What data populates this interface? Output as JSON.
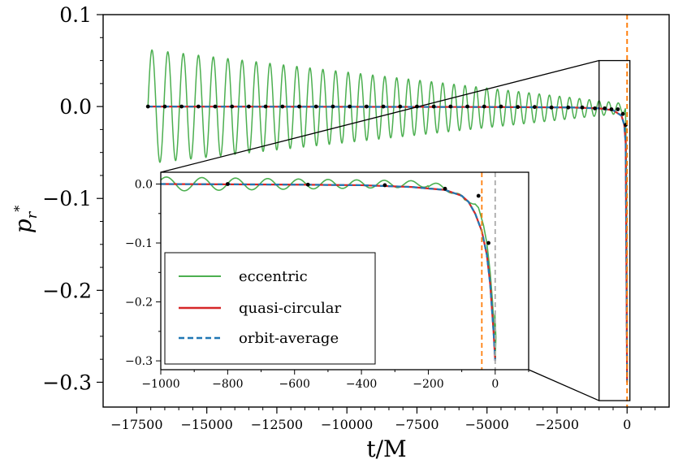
{
  "chart_data": [
    {
      "type": "line",
      "xlabel": "t/M",
      "ylabel": "p_{r*}",
      "ylabel_main": "p",
      "ylabel_sub": "r",
      "ylabel_sup": "*",
      "xlim": [
        -18700,
        1500
      ],
      "ylim": [
        -0.327,
        0.1
      ],
      "x_ticks": [
        -17500,
        -15000,
        -12500,
        -10000,
        -7500,
        -5000,
        -2500,
        0
      ],
      "x_tick_labels": [
        "−17500",
        "−15000",
        "−12500",
        "−10000",
        "−7500",
        "−5000",
        "−2500",
        "0"
      ],
      "y_ticks": [
        0.1,
        0.0,
        -0.1,
        -0.2,
        -0.3
      ],
      "y_tick_labels": [
        "0.1",
        "0.0",
        "−0.1",
        "−0.2",
        "−0.3"
      ],
      "vertical_lines": [
        {
          "x": 0,
          "color": "#ff7f0e",
          "style": "dashed"
        }
      ],
      "zoom_box": {
        "x_range": [
          -1000,
          100
        ],
        "y_range": [
          -0.32,
          0.05
        ]
      },
      "series": [
        {
          "name": "eccentric",
          "color": "#4caf50",
          "style": "solid",
          "description_points": {
            "x_start": -17100,
            "amplitude_start": 0.062,
            "amplitude_end": 0.005,
            "oscillations": 40,
            "end_value": -0.3
          }
        },
        {
          "name": "quasi-circular",
          "color": "#d62728",
          "style": "solid",
          "x": [
            -17100,
            -5000,
            -2000,
            -1000,
            -500,
            -200,
            -100,
            -50,
            0
          ],
          "y": [
            0.0,
            -0.0005,
            -0.001,
            -0.002,
            -0.004,
            -0.01,
            -0.02,
            -0.04,
            -0.3
          ]
        },
        {
          "name": "orbit-average",
          "color": "#1f77b4",
          "style": "dashed",
          "x": [
            -17100,
            -5000,
            -2000,
            -1000,
            -500,
            -200,
            -100,
            -50,
            0
          ],
          "y": [
            0.0,
            -0.0005,
            -0.001,
            -0.002,
            -0.004,
            -0.01,
            -0.02,
            -0.04,
            -0.3
          ]
        },
        {
          "name": "markers",
          "color": "#000000",
          "style": "points",
          "x": [
            -17100,
            -16500,
            -15900,
            -15300,
            -14700,
            -14100,
            -13500,
            -12900,
            -12300,
            -11700,
            -11100,
            -10500,
            -9900,
            -9300,
            -8700,
            -8100,
            -7500,
            -6900,
            -6300,
            -5700,
            -5100,
            -4500,
            -3900,
            -3300,
            -2700,
            -2100,
            -1600,
            -1150,
            -800,
            -560,
            -330,
            -150,
            -50
          ],
          "y": [
            0,
            0,
            0,
            0,
            0,
            0,
            0,
            0,
            0,
            0,
            0,
            0,
            0,
            0,
            0,
            0,
            0,
            0,
            0,
            0,
            0,
            0,
            -0.0005,
            -0.0005,
            -0.001,
            -0.001,
            -0.001,
            -0.002,
            -0.002,
            -0.003,
            -0.003,
            -0.008,
            -0.02
          ]
        }
      ]
    },
    {
      "type": "line",
      "xlim": [
        -1000,
        100
      ],
      "ylim": [
        -0.315,
        0.02
      ],
      "x_ticks": [
        -1000,
        -800,
        -600,
        -400,
        -200,
        0
      ],
      "x_tick_labels": [
        "−1000",
        "−800",
        "−600",
        "−400",
        "−200",
        "0"
      ],
      "y_ticks": [
        0.0,
        -0.1,
        -0.2,
        -0.3
      ],
      "y_tick_labels": [
        "0.0",
        "−0.1",
        "−0.2",
        "−0.3"
      ],
      "vertical_lines": [
        {
          "x": -40,
          "color": "#ff7f0e",
          "style": "dashed"
        },
        {
          "x": 0,
          "color": "#aaaaaa",
          "style": "dashed"
        }
      ],
      "series": [
        {
          "name": "eccentric",
          "color": "#4caf50",
          "style": "solid",
          "description_points": {
            "amplitude_start": 0.012,
            "amplitude_end": 0.004,
            "period": 110,
            "end_x": 0,
            "end_value": -0.3
          }
        },
        {
          "name": "quasi-circular",
          "color": "#d62728",
          "style": "solid",
          "x": [
            -1000,
            -600,
            -400,
            -250,
            -150,
            -100,
            -80,
            -60,
            -40,
            -25,
            -15,
            -5,
            0
          ],
          "y": [
            0.0,
            -0.001,
            -0.002,
            -0.005,
            -0.01,
            -0.02,
            -0.03,
            -0.05,
            -0.08,
            -0.12,
            -0.17,
            -0.25,
            -0.3
          ]
        },
        {
          "name": "orbit-average",
          "color": "#1f77b4",
          "style": "dashed",
          "x": [
            -1000,
            -600,
            -400,
            -250,
            -150,
            -100,
            -80,
            -60,
            -40,
            -25,
            -15,
            -5,
            0
          ],
          "y": [
            0.0,
            -0.001,
            -0.002,
            -0.005,
            -0.01,
            -0.02,
            -0.03,
            -0.05,
            -0.08,
            -0.12,
            -0.17,
            -0.25,
            -0.3
          ]
        },
        {
          "name": "markers",
          "color": "#000000",
          "style": "points",
          "x": [
            -800,
            -560,
            -330,
            -150,
            -50,
            -20
          ],
          "y": [
            0.0,
            -0.001,
            -0.002,
            -0.008,
            -0.02,
            -0.1
          ]
        }
      ],
      "legend": {
        "placement": "lower-left",
        "entries": [
          "eccentric",
          "quasi-circular",
          "orbit-average"
        ]
      }
    }
  ]
}
